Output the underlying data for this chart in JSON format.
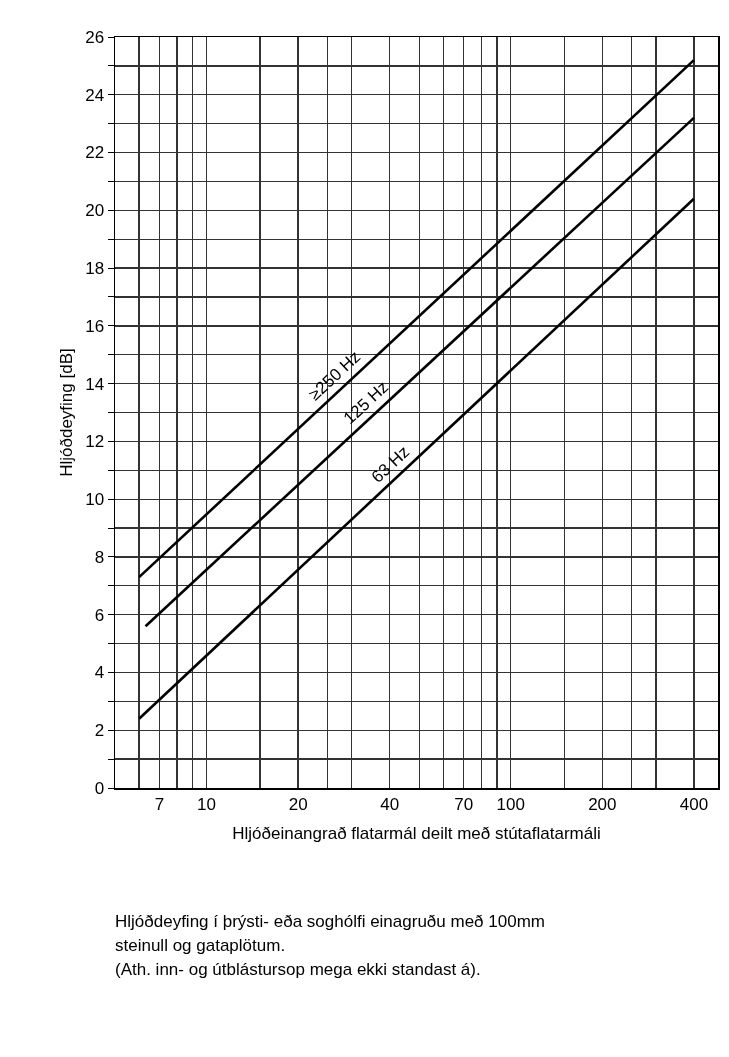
{
  "chart_data": {
    "type": "line",
    "xlabel": "Hljóðeinangrað flatarmál deilt með stútaflatarmáli",
    "ylabel": "Hljóðdeyfing [dB]",
    "log": "x",
    "xlim": [
      5,
      480
    ],
    "xticks": [
      {
        "value": 6,
        "label": null
      },
      7,
      {
        "value": 8,
        "label": null
      },
      {
        "value": 9,
        "label": null
      },
      10,
      {
        "value": 15,
        "label": null
      },
      20,
      {
        "value": 25,
        "label": null
      },
      {
        "value": 30,
        "label": null
      },
      40,
      {
        "value": 50,
        "label": null
      },
      {
        "value": 60,
        "label": null
      },
      70,
      {
        "value": 80,
        "label": null
      },
      {
        "value": 90,
        "label": null
      },
      100,
      {
        "value": 150,
        "label": null
      },
      200,
      {
        "value": 250,
        "label": null
      },
      {
        "value": 300,
        "label": null
      },
      400
    ],
    "ylim": [
      0,
      26
    ],
    "yticks": [
      0,
      {
        "value": 1,
        "label": null
      },
      2,
      {
        "value": 3,
        "label": null
      },
      4,
      {
        "value": 5,
        "label": null
      },
      6,
      {
        "value": 7,
        "label": null
      },
      8,
      {
        "value": 9,
        "label": null
      },
      10,
      {
        "value": 11,
        "label": null
      },
      12,
      {
        "value": 13,
        "label": null
      },
      14,
      {
        "value": 15,
        "label": null
      },
      16,
      {
        "value": 17,
        "label": null
      },
      18,
      {
        "value": 19,
        "label": null
      },
      20,
      {
        "value": 21,
        "label": null
      },
      22,
      {
        "value": 23,
        "label": null
      },
      24,
      {
        "value": 25,
        "label": null
      },
      26
    ],
    "grid": true,
    "legend": false,
    "marker": "none",
    "line_style": "solid",
    "series": [
      {
        "name": "≥250 Hz",
        "color": "#000000",
        "x": [
          6,
          400
        ],
        "values": [
          7.3,
          25.2
        ]
      },
      {
        "name": "125 Hz",
        "color": "#000000",
        "x": [
          6.3,
          400
        ],
        "values": [
          5.6,
          23.2
        ]
      },
      {
        "name": "63 Hz",
        "color": "#000000",
        "x": [
          6,
          400
        ],
        "values": [
          2.4,
          20.4
        ]
      }
    ],
    "annotations": [
      "Hljóðdeyfing í þrýsti- eða soghólfi einagruðu með 100mm steinull og gataplötum.",
      "(Ath. inn- og útblástursop mega ekki standast á)."
    ]
  }
}
